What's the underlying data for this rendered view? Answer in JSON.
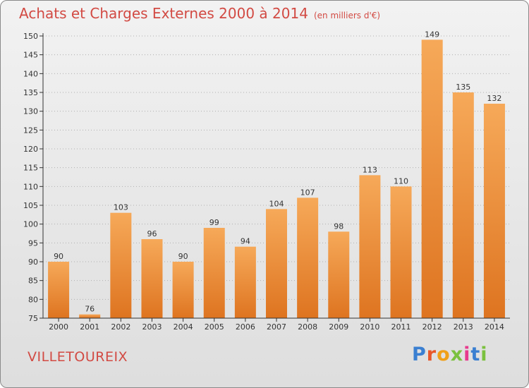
{
  "chart_data": {
    "type": "bar",
    "title": "Achats et Charges Externes 2000 à 2014",
    "subtitle": "(en milliers d'€)",
    "categories": [
      "2000",
      "2001",
      "2002",
      "2003",
      "2004",
      "2005",
      "2006",
      "2007",
      "2008",
      "2009",
      "2010",
      "2011",
      "2012",
      "2013",
      "2014"
    ],
    "values": [
      90,
      76,
      103,
      96,
      90,
      99,
      94,
      104,
      107,
      98,
      113,
      110,
      149,
      135,
      132
    ],
    "ylim": [
      75,
      150
    ],
    "yticks": [
      75,
      80,
      85,
      90,
      95,
      100,
      105,
      110,
      115,
      120,
      125,
      130,
      135,
      140,
      145,
      150
    ],
    "grid": "horizontal-dotted",
    "data_labels": true,
    "xlabel": "",
    "ylabel": ""
  },
  "place_name": "VILLETOUREIX",
  "logo": {
    "text": "Proxiti",
    "letter_colors": [
      "#3a7fd1",
      "#e8572a",
      "#f0a018",
      "#7bc13e",
      "#e83a8e",
      "#3a7fd1",
      "#7bc13e"
    ]
  },
  "colors": {
    "title": "#d24a43",
    "bar_top": "#f6a959",
    "bar_bottom": "#de7420",
    "axis": "#333333",
    "grid": "#b0b0b0"
  }
}
